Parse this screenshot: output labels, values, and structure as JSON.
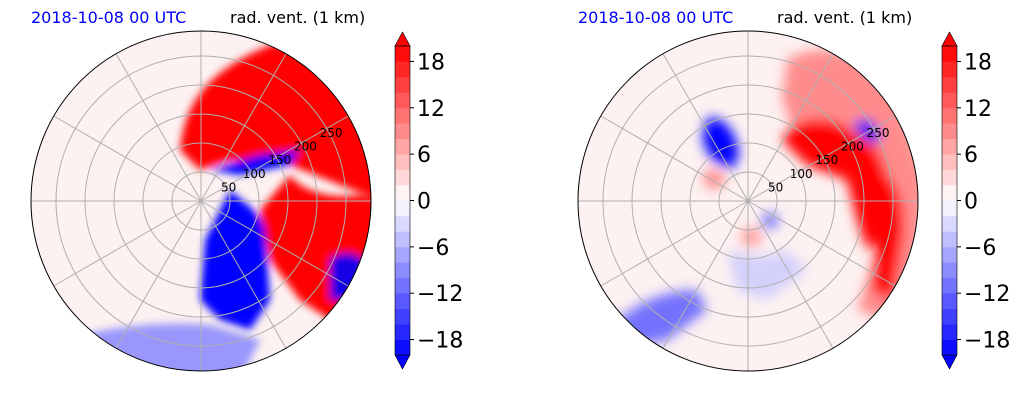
{
  "chart_data": [
    {
      "type": "heatmap",
      "subtype": "polar-radar-ppi",
      "title_left": "2018-10-08 00 UTC",
      "title_right": "rad. vent. (1 km)",
      "range_rings": [
        50,
        100,
        150,
        200,
        250
      ],
      "colorbar": {
        "ticks": [
          -18,
          -12,
          -6,
          0,
          6,
          12,
          18
        ],
        "vmin": -20,
        "vmax": 20,
        "step": 2,
        "extend": "both",
        "colormap": "bwr"
      },
      "colors": {
        "positive": "#ff0000",
        "negative": "#0000ff",
        "neutral": "#ffffff"
      }
    },
    {
      "type": "heatmap",
      "subtype": "polar-radar-ppi",
      "title_left": "2018-10-08 00 UTC",
      "title_right": "rad. vent. (1 km)",
      "range_rings": [
        50,
        100,
        150,
        200,
        250
      ],
      "colorbar": {
        "ticks": [
          -18,
          -12,
          -6,
          0,
          6,
          12,
          18
        ],
        "vmin": -20,
        "vmax": 20,
        "step": 2,
        "extend": "both",
        "colormap": "bwr"
      },
      "colors": {
        "positive": "#ff0000",
        "negative": "#0000ff",
        "neutral": "#ffffff"
      }
    }
  ]
}
